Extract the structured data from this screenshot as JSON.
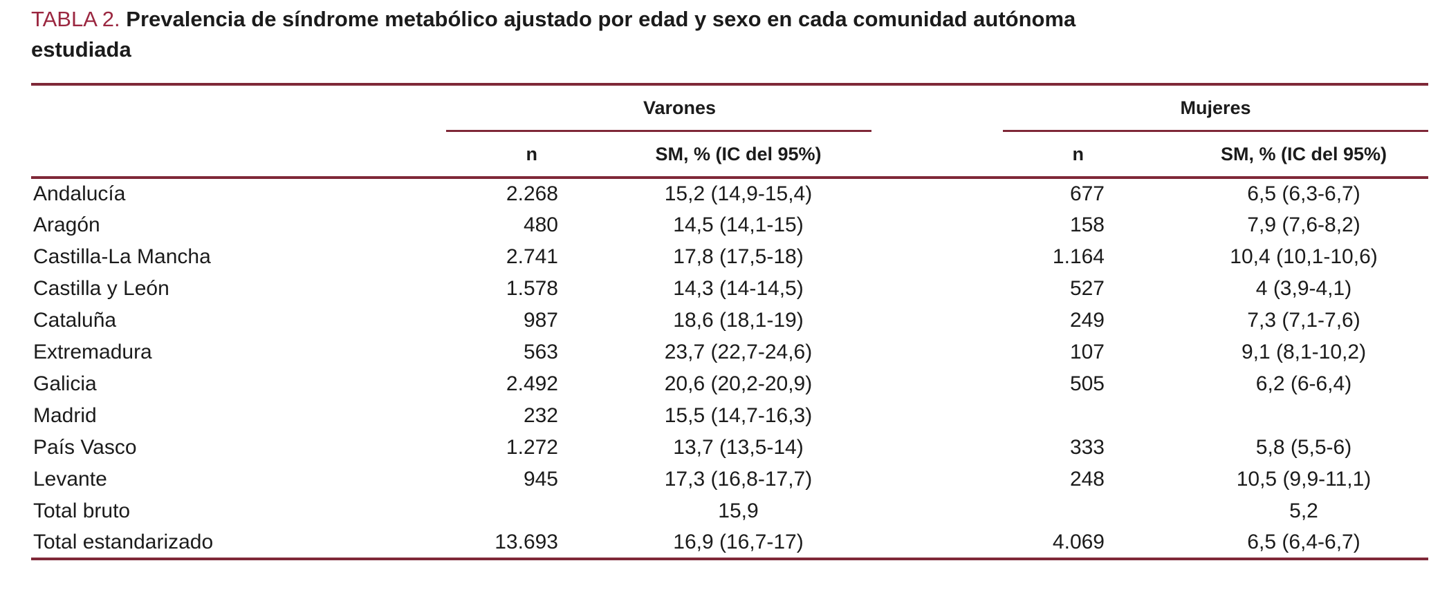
{
  "title": {
    "label": "TABLA 2.",
    "line1": "Prevalencia de síndrome metabólico ajustado por edad y sexo en cada comunidad autónoma",
    "line2": "estudiada"
  },
  "table": {
    "groups": [
      {
        "label": "Varones"
      },
      {
        "label": "Mujeres"
      }
    ],
    "subheaders": {
      "n": "n",
      "sm": "SM, % (IC del 95%)"
    },
    "rows": [
      {
        "region": "Andalucía",
        "v_n": "2.268",
        "v_sm": "15,2 (14,9-15,4)",
        "m_n": "677",
        "m_sm": "6,5 (6,3-6,7)"
      },
      {
        "region": "Aragón",
        "v_n": "480",
        "v_sm": "14,5 (14,1-15)",
        "m_n": "158",
        "m_sm": "7,9 (7,6-8,2)"
      },
      {
        "region": "Castilla-La Mancha",
        "v_n": "2.741",
        "v_sm": "17,8 (17,5-18)",
        "m_n": "1.164",
        "m_sm": "10,4 (10,1-10,6)"
      },
      {
        "region": "Castilla y León",
        "v_n": "1.578",
        "v_sm": "14,3 (14-14,5)",
        "m_n": "527",
        "m_sm": "4 (3,9-4,1)"
      },
      {
        "region": "Cataluña",
        "v_n": "987",
        "v_sm": "18,6 (18,1-19)",
        "m_n": "249",
        "m_sm": "7,3 (7,1-7,6)"
      },
      {
        "region": "Extremadura",
        "v_n": "563",
        "v_sm": "23,7 (22,7-24,6)",
        "m_n": "107",
        "m_sm": "9,1 (8,1-10,2)"
      },
      {
        "region": "Galicia",
        "v_n": "2.492",
        "v_sm": "20,6 (20,2-20,9)",
        "m_n": "505",
        "m_sm": "6,2 (6-6,4)"
      },
      {
        "region": "Madrid",
        "v_n": "232",
        "v_sm": "15,5 (14,7-16,3)",
        "m_n": "",
        "m_sm": ""
      },
      {
        "region": "País Vasco",
        "v_n": "1.272",
        "v_sm": "13,7 (13,5-14)",
        "m_n": "333",
        "m_sm": "5,8 (5,5-6)"
      },
      {
        "region": "Levante",
        "v_n": "945",
        "v_sm": "17,3 (16,8-17,7)",
        "m_n": "248",
        "m_sm": "10,5 (9,9-11,1)"
      },
      {
        "region": "Total bruto",
        "v_n": "",
        "v_sm": "15,9",
        "m_n": "",
        "m_sm": "5,2"
      },
      {
        "region": "Total estandarizado",
        "v_n": "13.693",
        "v_sm": "16,9 (16,7-17)",
        "m_n": "4.069",
        "m_sm": "6,5 (6,4-6,7)"
      }
    ]
  },
  "colors": {
    "rule": "#7f2838",
    "title_accent": "#9b2740",
    "text": "#1b1b1b"
  }
}
